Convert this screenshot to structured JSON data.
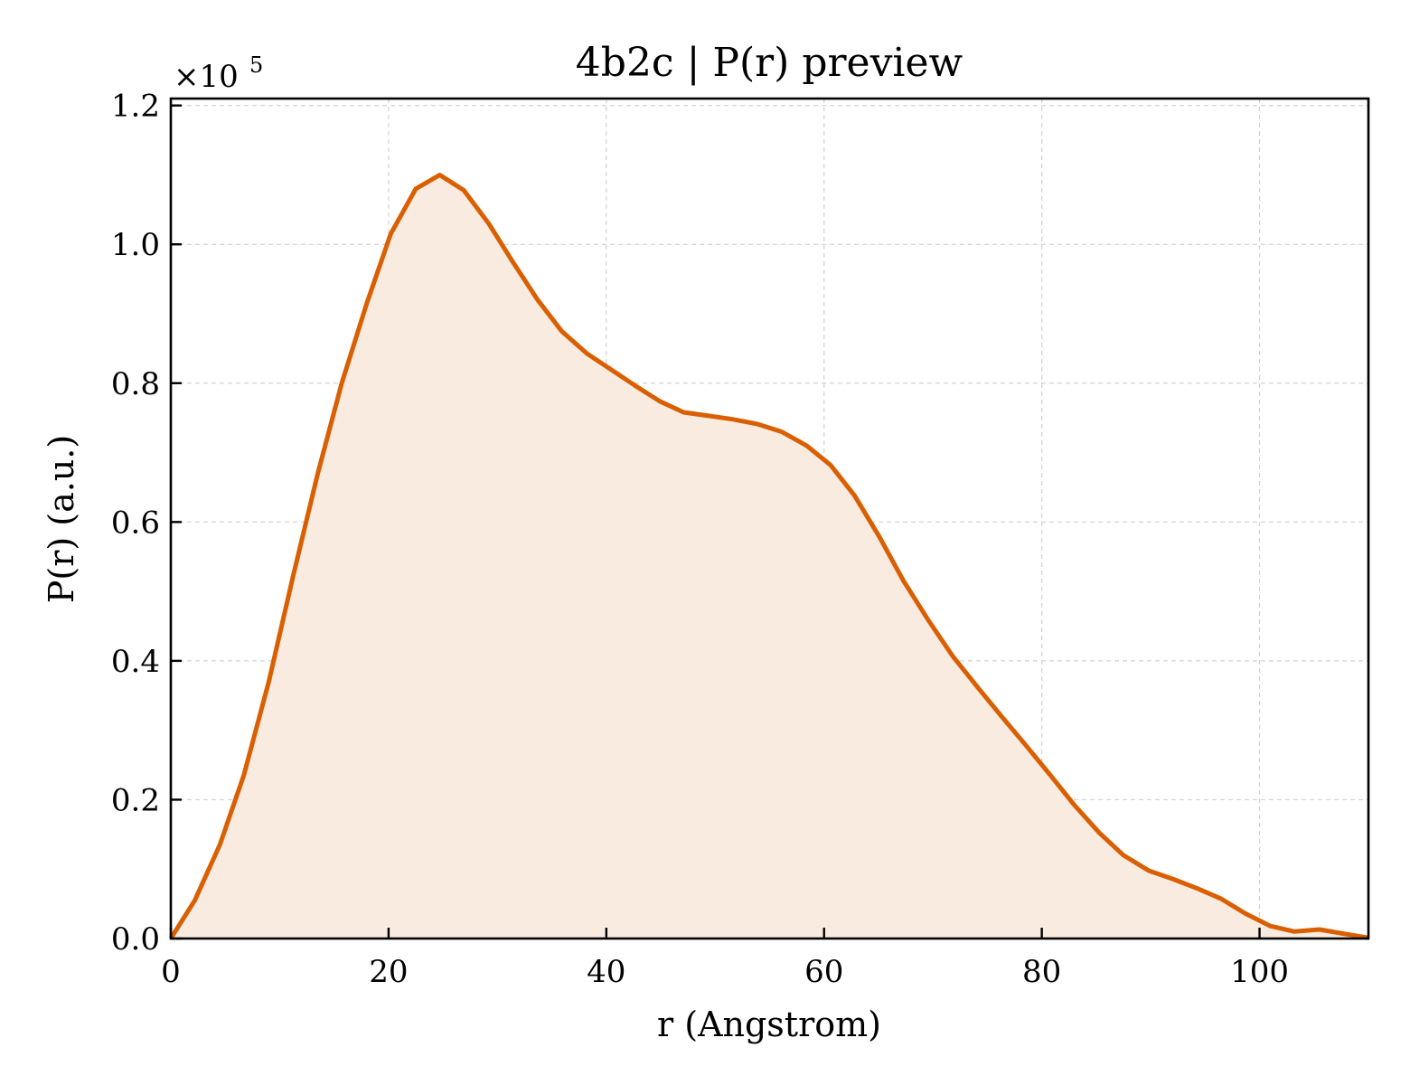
{
  "chart_data": {
    "type": "area",
    "title": "4b2c | P(r) preview",
    "xlabel": "r (Angstrom)",
    "ylabel": "P(r) (a.u.)",
    "y_multiplier": {
      "base": "×10",
      "exponent": "5",
      "factor": 100000
    },
    "xlim": [
      0,
      110
    ],
    "ylim": [
      0,
      1.21
    ],
    "xticks": [
      0,
      20,
      40,
      60,
      80,
      100
    ],
    "xtick_labels": [
      "0",
      "20",
      "40",
      "60",
      "80",
      "100"
    ],
    "yticks": [
      0.0,
      0.2,
      0.4,
      0.6,
      0.8,
      1.0,
      1.2
    ],
    "ytick_labels": [
      "0.0",
      "0.2",
      "0.4",
      "0.6",
      "0.8",
      "1.0",
      "1.2"
    ],
    "grid": true,
    "colors": {
      "line": "#d95f02",
      "fill": "#f9ebe0"
    },
    "series": [
      {
        "x": [
          0,
          2.2,
          4.5,
          6.7,
          9.0,
          11.2,
          13.5,
          15.7,
          18.0,
          20.2,
          22.5,
          24.7,
          26.9,
          29.2,
          31.4,
          33.7,
          35.9,
          38.2,
          40.4,
          42.6,
          44.9,
          47.1,
          49.4,
          51.6,
          53.9,
          56.1,
          58.4,
          60.6,
          62.8,
          65.1,
          67.3,
          69.6,
          71.8,
          74.1,
          76.3,
          78.5,
          80.8,
          83.0,
          85.3,
          87.5,
          89.8,
          92.0,
          94.3,
          96.5,
          98.7,
          101.0,
          103.2,
          105.5,
          107.7,
          110.0
        ],
        "y": [
          0.0,
          0.055,
          0.135,
          0.235,
          0.37,
          0.52,
          0.67,
          0.8,
          0.915,
          1.015,
          1.08,
          1.1,
          1.078,
          1.03,
          0.975,
          0.92,
          0.875,
          0.843,
          0.82,
          0.797,
          0.774,
          0.758,
          0.753,
          0.748,
          0.741,
          0.73,
          0.71,
          0.682,
          0.638,
          0.578,
          0.515,
          0.458,
          0.407,
          0.362,
          0.32,
          0.279,
          0.235,
          0.192,
          0.152,
          0.12,
          0.098,
          0.086,
          0.072,
          0.057,
          0.036,
          0.018,
          0.01,
          0.013,
          0.007,
          0.001
        ]
      }
    ]
  }
}
